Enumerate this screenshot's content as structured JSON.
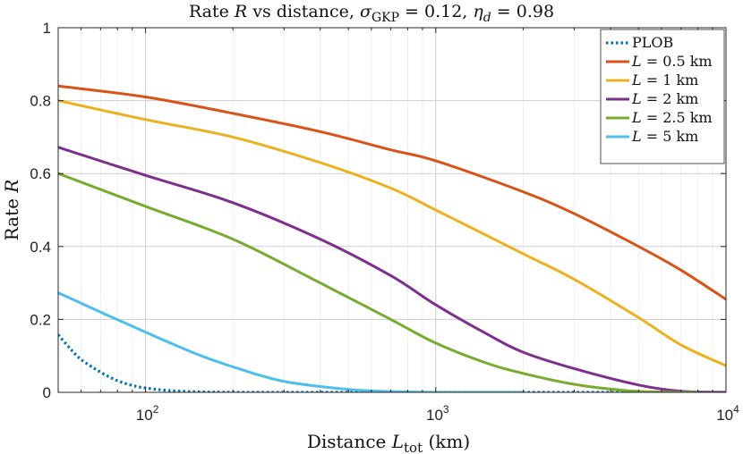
{
  "chart_data": {
    "type": "line",
    "title": "Rate R vs distance, σGKP = 0.12, ηd = 0.98",
    "title_parts": {
      "prefix": "Rate ",
      "var": "R",
      "mid": " vs distance, ",
      "sigma": "σ",
      "sigma_sub": "GKP",
      "sigma_val": " = 0.12, ",
      "eta": "η",
      "eta_sub": "d",
      "eta_val": " = 0.98"
    },
    "xlabel": "Distance L_tot (km)",
    "xlabel_parts": {
      "prefix": "Distance ",
      "var": "L",
      "sub": "tot",
      "suffix": " (km)"
    },
    "ylabel": "Rate R",
    "ylabel_parts": {
      "prefix": "Rate ",
      "var": "R"
    },
    "xscale": "log",
    "xlim": [
      50,
      10000
    ],
    "ylim": [
      0,
      1
    ],
    "xticks": [
      {
        "value": 100,
        "base": "10",
        "exp": "2"
      },
      {
        "value": 1000,
        "base": "10",
        "exp": "3"
      },
      {
        "value": 10000,
        "base": "10",
        "exp": "4"
      }
    ],
    "yticks": [
      "0",
      "0.2",
      "0.4",
      "0.6",
      "0.8",
      "1"
    ],
    "grid": true,
    "legend_position": "top-right",
    "series": [
      {
        "name": "PLOB",
        "label_var": "",
        "label_text": "PLOB",
        "color": "#0072bd",
        "dashed": true,
        "x": [
          50,
          55,
          60,
          70,
          80,
          90,
          100,
          120,
          150,
          200,
          300,
          500,
          1000,
          2000,
          4000,
          8000
        ],
        "y": [
          0.158,
          0.12,
          0.09,
          0.055,
          0.032,
          0.019,
          0.012,
          0.005,
          0.0015,
          0.0003,
          0,
          0,
          0,
          0,
          0,
          0
        ]
      },
      {
        "name": "L = 0.5 km",
        "label_var": "L",
        "label_text": " = 0.5 km",
        "color": "#d95319",
        "dashed": false,
        "x": [
          50,
          100,
          200,
          400,
          700,
          1000,
          2000,
          3000,
          5000,
          7000,
          10000
        ],
        "y": [
          0.84,
          0.81,
          0.765,
          0.715,
          0.665,
          0.635,
          0.55,
          0.49,
          0.4,
          0.335,
          0.255
        ]
      },
      {
        "name": "L = 1 km",
        "label_var": "L",
        "label_text": " = 1 km",
        "color": "#edb120",
        "dashed": false,
        "x": [
          50,
          100,
          200,
          400,
          700,
          1000,
          2000,
          3000,
          5000,
          7000,
          10000
        ],
        "y": [
          0.8,
          0.748,
          0.7,
          0.63,
          0.56,
          0.5,
          0.38,
          0.31,
          0.205,
          0.13,
          0.073
        ]
      },
      {
        "name": "L = 2 km",
        "label_var": "L",
        "label_text": " = 2 km",
        "color": "#7e2f8e",
        "dashed": false,
        "x": [
          50,
          100,
          200,
          400,
          700,
          1000,
          1500,
          2000,
          3000,
          5000,
          7000,
          10000
        ],
        "y": [
          0.672,
          0.595,
          0.52,
          0.42,
          0.32,
          0.24,
          0.16,
          0.11,
          0.065,
          0.02,
          0.003,
          0.0
        ]
      },
      {
        "name": "L = 2.5 km",
        "label_var": "L",
        "label_text": " = 2.5 km",
        "color": "#77ac30",
        "dashed": false,
        "x": [
          50,
          100,
          200,
          400,
          700,
          1000,
          1500,
          2000,
          3000,
          4500,
          6000,
          8000
        ],
        "y": [
          0.6,
          0.51,
          0.42,
          0.3,
          0.2,
          0.135,
          0.08,
          0.052,
          0.022,
          0.005,
          0.001,
          0.0
        ]
      },
      {
        "name": "L = 5 km",
        "label_var": "L",
        "label_text": " = 5 km",
        "color": "#4dbeee",
        "dashed": false,
        "x": [
          50,
          70,
          100,
          150,
          200,
          300,
          500,
          700,
          1000,
          2000
        ],
        "y": [
          0.273,
          0.22,
          0.165,
          0.105,
          0.07,
          0.03,
          0.008,
          0.002,
          0.0,
          0.0
        ]
      }
    ]
  }
}
